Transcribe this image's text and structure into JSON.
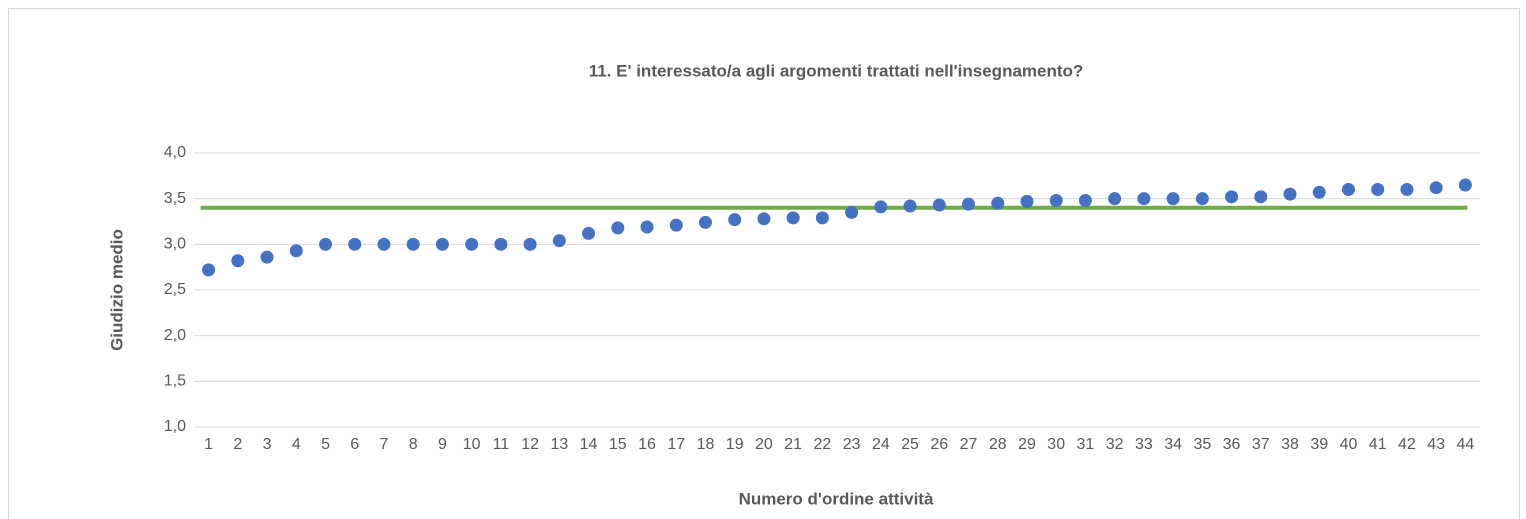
{
  "chart_data": {
    "type": "scatter",
    "title": "11. E' interessato/a agli argomenti trattati nell'insegnamento?",
    "xlabel": "Numero d'ordine attività",
    "ylabel": "Giudizio medio",
    "categories": [
      "1",
      "2",
      "3",
      "4",
      "5",
      "6",
      "7",
      "8",
      "9",
      "10",
      "11",
      "12",
      "13",
      "14",
      "15",
      "16",
      "17",
      "18",
      "19",
      "20",
      "21",
      "22",
      "23",
      "24",
      "25",
      "26",
      "27",
      "28",
      "29",
      "30",
      "31",
      "32",
      "33",
      "34",
      "35",
      "36",
      "37",
      "38",
      "39",
      "40",
      "41",
      "42",
      "43",
      "44"
    ],
    "values": [
      2.72,
      2.82,
      2.86,
      2.93,
      3.0,
      3.0,
      3.0,
      3.0,
      3.0,
      3.0,
      3.0,
      3.0,
      3.04,
      3.12,
      3.18,
      3.19,
      3.21,
      3.24,
      3.27,
      3.28,
      3.29,
      3.29,
      3.35,
      3.41,
      3.42,
      3.43,
      3.44,
      3.45,
      3.47,
      3.48,
      3.48,
      3.5,
      3.5,
      3.5,
      3.5,
      3.52,
      3.52,
      3.55,
      3.57,
      3.6,
      3.6,
      3.6,
      3.62,
      3.65
    ],
    "color": "#4472c4",
    "reference_line": {
      "value": 3.4,
      "color": "#70ad47"
    },
    "ylim": [
      1,
      4
    ],
    "yticks": [
      {
        "value": 1,
        "label": "1,0"
      },
      {
        "value": 1.5,
        "label": "1,5"
      },
      {
        "value": 2,
        "label": "2,0"
      },
      {
        "value": 2.5,
        "label": "2,5"
      },
      {
        "value": 3,
        "label": "3,0"
      },
      {
        "value": 3.5,
        "label": "3,5"
      },
      {
        "value": 4,
        "label": "4,0"
      }
    ],
    "grid": true
  }
}
